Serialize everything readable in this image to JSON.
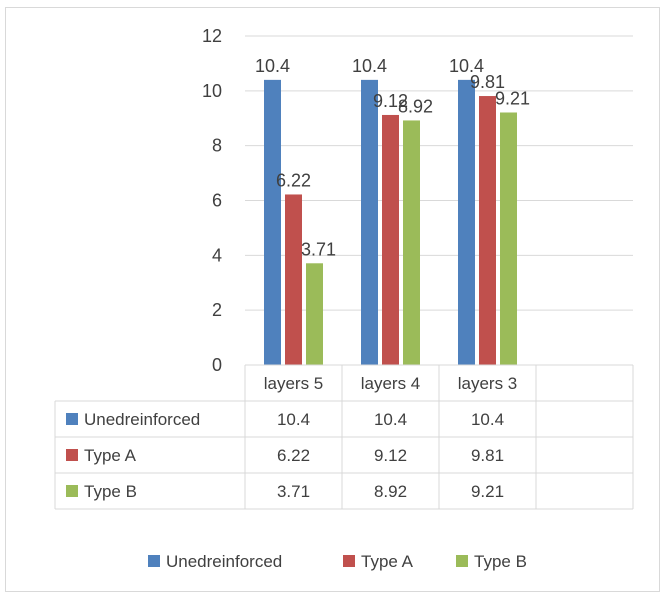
{
  "chart_data": {
    "type": "bar",
    "categories": [
      "layers 5",
      "layers 4",
      "layers 3"
    ],
    "series": [
      {
        "name": "Unedreinforced",
        "values": [
          10.4,
          10.4,
          10.4
        ],
        "color": "#4f81bd"
      },
      {
        "name": "Type A",
        "values": [
          6.22,
          9.12,
          9.81
        ],
        "color": "#c0504d"
      },
      {
        "name": "Type B",
        "values": [
          3.71,
          8.92,
          9.21
        ],
        "color": "#9bbb59"
      }
    ],
    "ylim": [
      0,
      12
    ],
    "yticks": [
      0,
      2,
      4,
      6,
      8,
      10,
      12
    ],
    "grid": true,
    "legend": "bottom",
    "data_table": true
  }
}
